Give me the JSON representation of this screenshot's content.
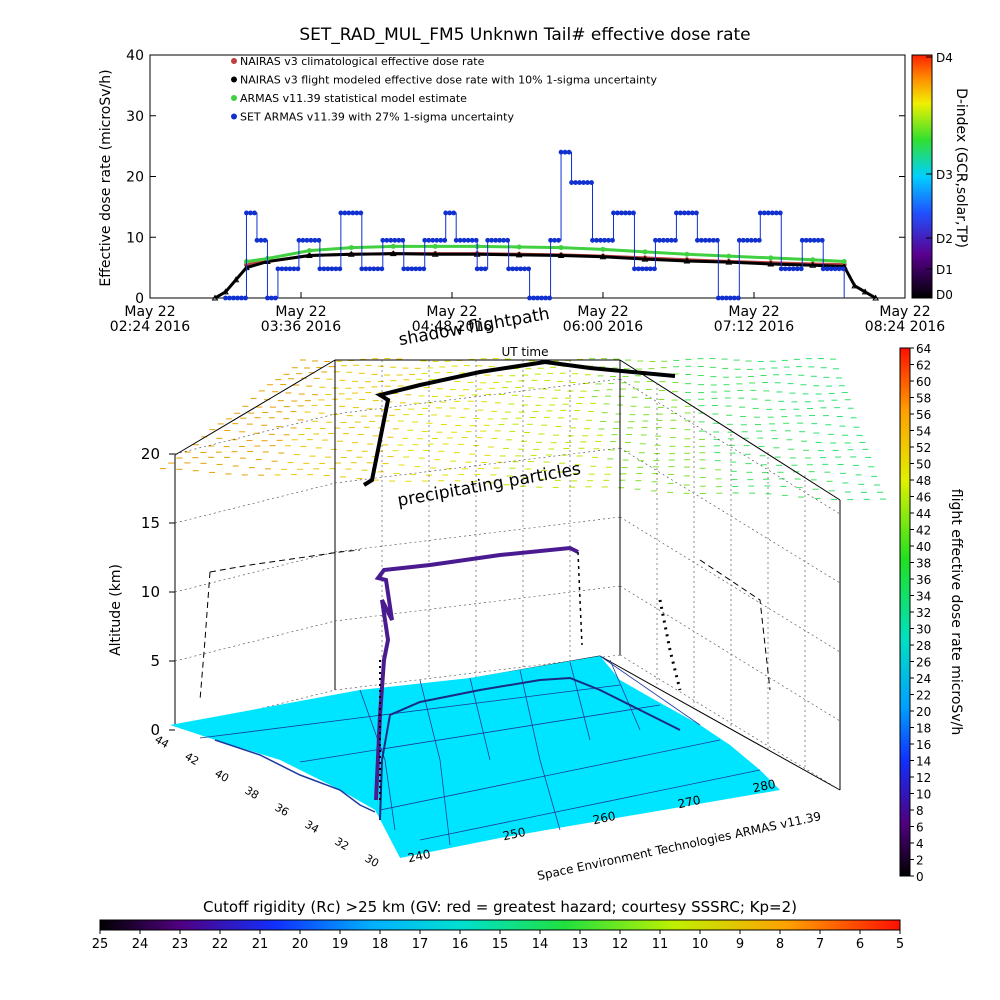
{
  "chart_data": [
    {
      "type": "scatter",
      "title": "SET_RAD_MUL_FM5 Unknwn Tail#  effective dose rate",
      "ylabel": "Effective dose rate (microSv/h)",
      "ylim": [
        0,
        40
      ],
      "y_ticks": [
        "0",
        "10",
        "20",
        "30",
        "40"
      ],
      "x_ticks": [
        {
          "date": "May 22",
          "time": "02:24 2016"
        },
        {
          "date": "May 22",
          "time": "03:36 2016"
        },
        {
          "date": "May 22",
          "time": "04:48 2016"
        },
        {
          "date": "May 22",
          "time": "06:00 2016"
        },
        {
          "date": "May 22",
          "time": "07:12 2016"
        },
        {
          "date": "May 22",
          "time": "08:24 2016"
        }
      ],
      "xlim": [
        "2016-05-22 02:24",
        "2016-05-22 08:24"
      ],
      "xlabel": "UT time",
      "legend_position": "top-left",
      "series": [
        {
          "name": "NAIRAS v3 climatological effective dose rate",
          "marker": "diamond",
          "color": "#c04040",
          "x": [
            "03:10",
            "03:20",
            "03:40",
            "04:00",
            "04:20",
            "04:40",
            "05:00",
            "05:20",
            "05:40",
            "06:00",
            "06:20",
            "06:40",
            "07:00",
            "07:20",
            "07:40",
            "07:55"
          ],
          "values": [
            5.5,
            6,
            7,
            7.2,
            7.3,
            7.3,
            7.3,
            7.2,
            7.1,
            6.9,
            6.6,
            6.3,
            6.0,
            5.8,
            5.6,
            5.5
          ]
        },
        {
          "name": "NAIRAS v3 flight modeled effective dose rate with 10% 1-sigma uncertainty",
          "marker": "triangle",
          "color": "#000000",
          "x": [
            "02:55",
            "03:00",
            "03:05",
            "03:10",
            "03:20",
            "03:40",
            "04:00",
            "04:20",
            "04:40",
            "05:00",
            "05:20",
            "05:40",
            "06:00",
            "06:20",
            "06:40",
            "07:00",
            "07:20",
            "07:40",
            "07:55",
            "08:00",
            "08:05",
            "08:10"
          ],
          "values": [
            0,
            1,
            3,
            5,
            6,
            7,
            7.2,
            7.3,
            7.2,
            7.2,
            7.1,
            7.0,
            6.8,
            6.4,
            6.1,
            5.9,
            5.6,
            5.4,
            5.2,
            2,
            1,
            0
          ]
        },
        {
          "name": "ARMAS v11.39 statistical model estimate",
          "marker": "star",
          "color": "#40d040",
          "x": [
            "03:10",
            "03:20",
            "03:40",
            "04:00",
            "04:20",
            "04:40",
            "05:00",
            "05:20",
            "05:40",
            "06:00",
            "06:20",
            "06:40",
            "07:00",
            "07:20",
            "07:40",
            "07:55"
          ],
          "values": [
            6,
            6.5,
            7.8,
            8.3,
            8.5,
            8.5,
            8.5,
            8.4,
            8.3,
            8.0,
            7.6,
            7.2,
            6.9,
            6.6,
            6.3,
            6.0
          ]
        },
        {
          "name": "SET ARMAS v11.39 with 27% 1-sigma uncertainty",
          "marker": "circle",
          "color": "#1030d0",
          "x": [
            "03:00",
            "03:10",
            "03:15",
            "03:20",
            "03:25",
            "03:35",
            "03:45",
            "03:55",
            "04:05",
            "04:15",
            "04:25",
            "04:35",
            "04:45",
            "04:50",
            "05:00",
            "05:05",
            "05:15",
            "05:25",
            "05:35",
            "05:40",
            "05:45",
            "05:55",
            "06:05",
            "06:15",
            "06:25",
            "06:35",
            "06:45",
            "06:55",
            "07:05",
            "07:15",
            "07:25",
            "07:35",
            "07:45",
            "07:55"
          ],
          "values": [
            0,
            14,
            9.5,
            0,
            4.8,
            9.5,
            4.8,
            14,
            4.8,
            9.5,
            4.8,
            9.5,
            14,
            9.5,
            4.8,
            9.5,
            4.8,
            0,
            9.5,
            24,
            19,
            9.5,
            14,
            4.8,
            9.5,
            14,
            9.5,
            0,
            9.5,
            14,
            4.8,
            9.5,
            4.8,
            0
          ]
        }
      ],
      "right_axis": {
        "label": "D-index (GCR,solar,TP)",
        "ticks": [
          "D0",
          "D1",
          "D2",
          "D3",
          "D4"
        ]
      }
    },
    {
      "type": "scatter",
      "title": "",
      "overlay_labels": [
        "shadow flightpath",
        "UT time",
        "precipitating particles"
      ],
      "zlabel": "Altitude (km)",
      "zlim": [
        0,
        20
      ],
      "z_ticks": [
        "0",
        "5",
        "10",
        "15",
        "20"
      ],
      "lat_ticks": [
        "44",
        "42",
        "40",
        "38",
        "36",
        "34",
        "32",
        "30"
      ],
      "lon_ticks": [
        "240",
        "250",
        "260",
        "270",
        "280"
      ],
      "credit": "Space Environment Technologies ARMAS v11.39",
      "flight_track": {
        "lon": [
          241,
          242,
          244,
          248,
          254,
          258,
          262,
          266,
          270,
          272,
          273,
          273,
          273
        ],
        "lat": [
          33.5,
          35,
          37,
          38.5,
          39.2,
          39.6,
          39.8,
          40,
          40.3,
          40.6,
          41.5,
          43,
          44
        ],
        "altitude_km": [
          0,
          4,
          8,
          11,
          11.5,
          12,
          12.5,
          12.8,
          12.8,
          12.5,
          10,
          8,
          5
        ]
      },
      "colorbar": {
        "label": "flight effective dose rate microSv/h",
        "min": 0,
        "max": 64,
        "ticks": [
          "0",
          "2",
          "4",
          "6",
          "8",
          "10",
          "12",
          "14",
          "16",
          "18",
          "20",
          "22",
          "24",
          "26",
          "28",
          "30",
          "32",
          "34",
          "36",
          "38",
          "40",
          "42",
          "44",
          "46",
          "48",
          "50",
          "52",
          "54",
          "56",
          "58",
          "60",
          "62",
          "64"
        ]
      }
    },
    {
      "type": "heatmap",
      "colorbar": {
        "label": "Cutoff rigidity (Rc) >25 km (GV: red = greatest hazard; courtesy SSSRC; Kp=2)",
        "ticks": [
          "25",
          "24",
          "23",
          "22",
          "21",
          "20",
          "19",
          "18",
          "17",
          "16",
          "15",
          "14",
          "13",
          "12",
          "11",
          "10",
          "9",
          "8",
          "7",
          "6",
          "5"
        ]
      }
    }
  ],
  "colors": {
    "map_fill": "#00e5ff",
    "map_outline": "#1a3aa0",
    "track_color": "#000000"
  }
}
